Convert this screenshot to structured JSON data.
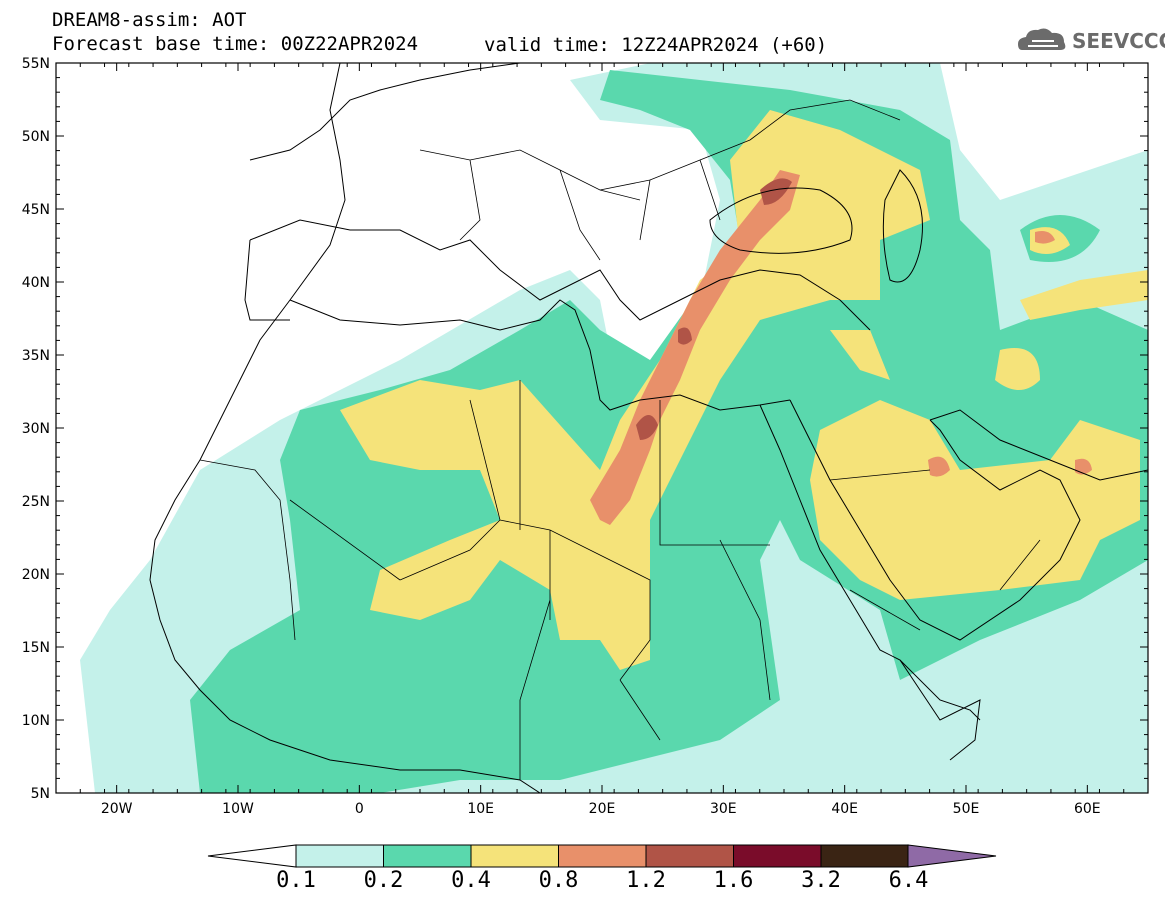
{
  "header": {
    "title": "DREAM8-assim: AOT",
    "base_time": "Forecast base time: 00Z22APR2024",
    "valid_time": "valid time: 12Z24APR2024 (+60)"
  },
  "logo": {
    "text": "SEEVCCC",
    "icon": "cloud-icon"
  },
  "map": {
    "lat_range": [
      5,
      55
    ],
    "lon_range": [
      -25,
      65
    ],
    "lat_labels": [
      "55N",
      "50N",
      "45N",
      "40N",
      "35N",
      "30N",
      "25N",
      "20N",
      "15N",
      "10N",
      "5N"
    ],
    "lon_labels": [
      "20W",
      "10W",
      "0",
      "10E",
      "20E",
      "30E",
      "40E",
      "50E",
      "60E"
    ]
  },
  "colorbar": {
    "ticks": [
      "0.1",
      "0.2",
      "0.4",
      "0.8",
      "1.2",
      "1.6",
      "3.2",
      "6.4"
    ],
    "colors": [
      "#c4f1ea",
      "#5ad8ad",
      "#f5e37a",
      "#e8906a",
      "#b05447",
      "#7a0c2a",
      "#3a2414",
      "#8f6aa6"
    ]
  }
}
